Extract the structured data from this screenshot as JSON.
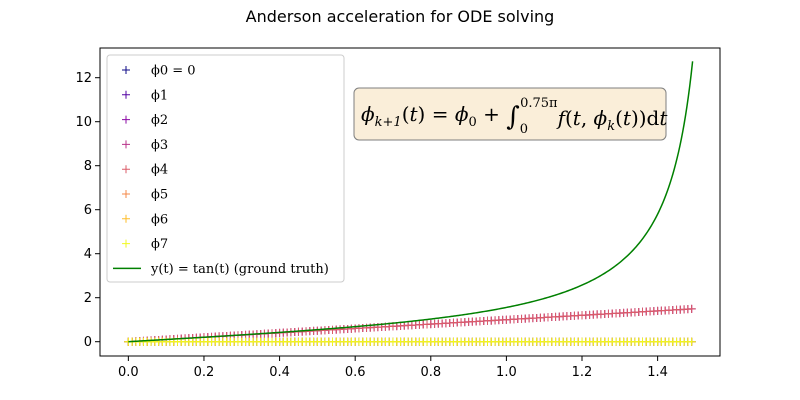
{
  "chart_data": {
    "type": "line",
    "title": "Anderson acceleration for ODE solving",
    "xlabel": "",
    "ylabel": "",
    "xlim": [
      -0.075,
      1.565
    ],
    "ylim": [
      -0.65,
      13.35
    ],
    "xticks": [
      0.0,
      0.2,
      0.4,
      0.6,
      0.8,
      1.0,
      1.2,
      1.4
    ],
    "xtick_labels": [
      "0.0",
      "0.2",
      "0.4",
      "0.6",
      "0.8",
      "1.0",
      "1.2",
      "1.4"
    ],
    "yticks": [
      0,
      2,
      4,
      6,
      8,
      10,
      12
    ],
    "ytick_labels": [
      "0",
      "2",
      "4",
      "6",
      "8",
      "10",
      "12"
    ],
    "grid": false,
    "legend_position": "upper-left",
    "annotation": "ϕk+1(t) = ϕ0 + ∫0^0.75π f(t, ϕk(t)) dt",
    "series": [
      {
        "name": "ϕ0 = 0",
        "marker": "+",
        "color": "#0d0887",
        "kind": "markers",
        "x_range": [
          0,
          1.49
        ],
        "values_desc": "constant",
        "constant": 0
      },
      {
        "name": "ϕ1",
        "marker": "+",
        "color": "#5302a3",
        "kind": "markers",
        "x_range": [
          0,
          1.49
        ],
        "constant": 0
      },
      {
        "name": "ϕ2",
        "marker": "+",
        "color": "#8b0aa5",
        "kind": "markers",
        "x_range": [
          0,
          1.49
        ],
        "slope": 1
      },
      {
        "name": "ϕ3",
        "marker": "+",
        "color": "#b83289",
        "kind": "markers",
        "x_range": [
          0,
          1.49
        ],
        "slope": 1
      },
      {
        "name": "ϕ4",
        "marker": "+",
        "color": "#db5c68",
        "kind": "markers",
        "x_range": [
          0,
          1.49
        ],
        "slope": 1
      },
      {
        "name": "ϕ5",
        "marker": "+",
        "color": "#f48849",
        "kind": "markers",
        "x_range": [
          0,
          1.49
        ],
        "slope": 0
      },
      {
        "name": "ϕ6",
        "marker": "+",
        "color": "#febd2a",
        "kind": "markers",
        "x_range": [
          0,
          1.49
        ],
        "slope": 0
      },
      {
        "name": "ϕ7",
        "marker": "+",
        "color": "#f0f921",
        "kind": "markers",
        "x_range": [
          0,
          1.49
        ],
        "slope": 0
      },
      {
        "name": "y(t) = tan(t) (ground truth)",
        "color": "#008000",
        "kind": "line",
        "function": "tan",
        "x_range": [
          0,
          1.4925
        ]
      }
    ]
  }
}
